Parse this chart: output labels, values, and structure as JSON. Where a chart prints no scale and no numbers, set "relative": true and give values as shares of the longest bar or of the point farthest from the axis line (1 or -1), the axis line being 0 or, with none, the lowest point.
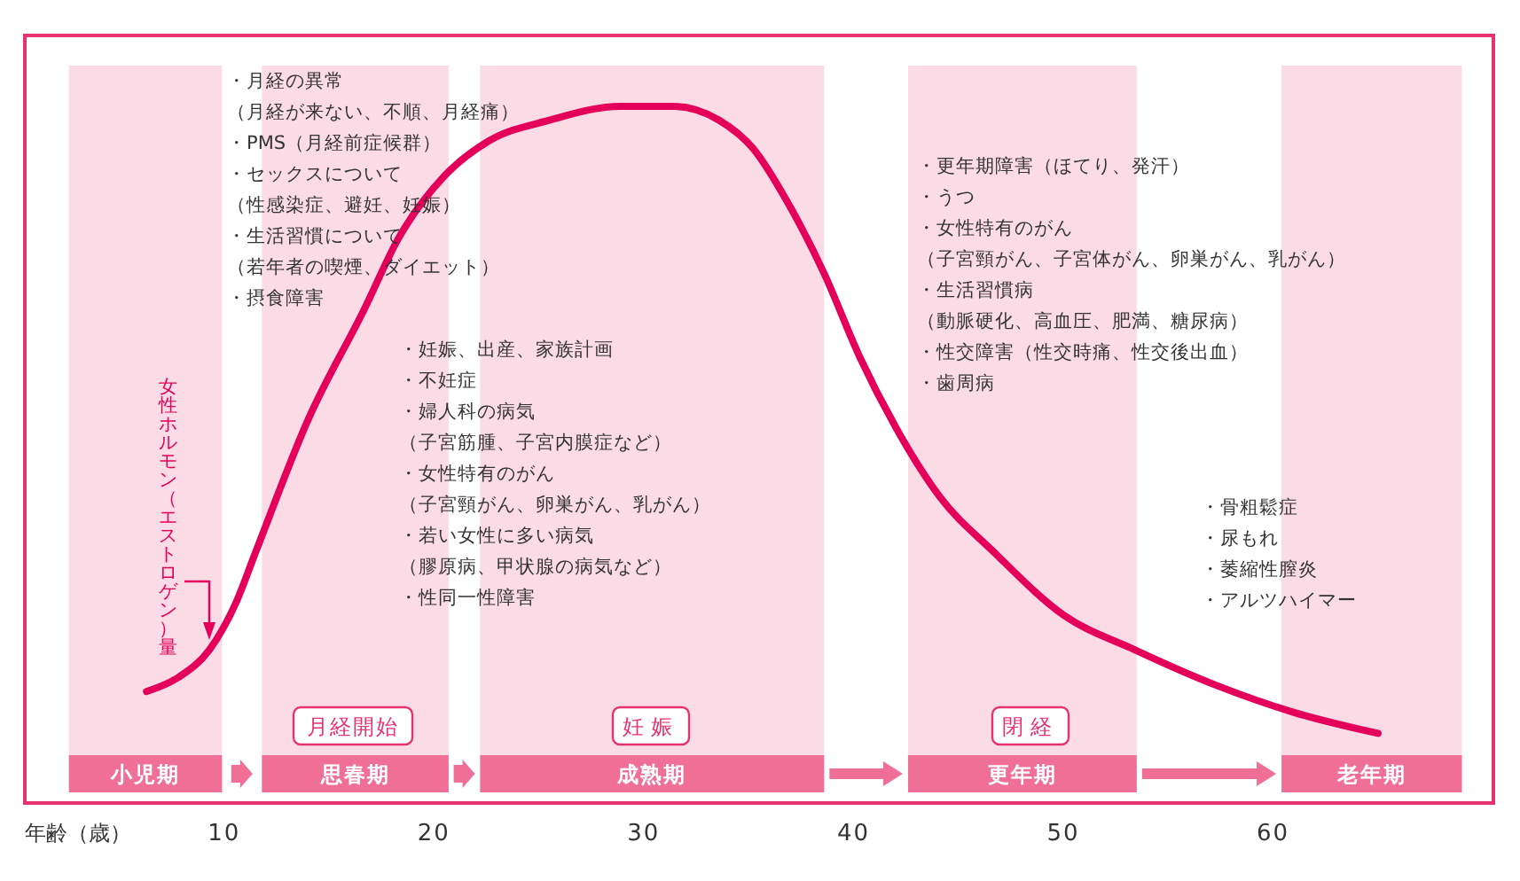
{
  "chart_data": {
    "type": "line",
    "relative": true,
    "xlabel": "年齢（歳）",
    "xlim": [
      0.5,
      70.5
    ],
    "xticks": [
      10,
      20,
      30,
      40,
      50,
      60
    ],
    "x": [
      6.3,
      7.8,
      9.3,
      10.6,
      11.5,
      14.0,
      16.7,
      18.3,
      20.5,
      22.6,
      25.5,
      28.9,
      31.4,
      33.6,
      35.2,
      36.9,
      38.6,
      40.3,
      42.0,
      44.1,
      46.7,
      50.0,
      53.4,
      57.2,
      61.0,
      65.0
    ],
    "series": [
      {
        "name": "女性ホルモン（エストロゲン）量",
        "color": "#e4005a",
        "values": [
          0.16,
          0.18,
          0.22,
          0.29,
          0.36,
          0.55,
          0.71,
          0.81,
          0.9,
          0.95,
          0.98,
          1,
          1,
          0.98,
          0.94,
          0.86,
          0.76,
          0.64,
          0.54,
          0.44,
          0.36,
          0.27,
          0.22,
          0.17,
          0.13,
          0.1
        ]
      }
    ],
    "bands": [
      {
        "axis": "x",
        "from": 2.6,
        "to": 9.9,
        "label": "小児期",
        "color": "#ef6f97"
      },
      {
        "axis": "x",
        "from": 11.8,
        "to": 20.7,
        "label": "思春期",
        "color": "#ef6f97"
      },
      {
        "axis": "x",
        "from": 22.2,
        "to": 38.6,
        "label": "成熟期",
        "color": "#ef6f97"
      },
      {
        "axis": "x",
        "from": 42.6,
        "to": 53.5,
        "label": "更年期",
        "color": "#ef6f97"
      },
      {
        "axis": "x",
        "from": 60.4,
        "to": 69,
        "label": "老年期",
        "color": "#ef6f97"
      }
    ],
    "annotations": [
      "・月経の異常",
      "（月経が来ない、不順、月経痛）",
      "・PMS（月経前症候群）",
      "・セックスについて",
      "（性感染症、避妊、妊娠）",
      "・生活習慣について",
      "（若年者の喫煙、ダイエット）",
      "・摂食障害",
      "・妊娠、出産、家族計画",
      "・不妊症",
      "・婦人科の病気",
      "（子宮筋腫、子宮内膜症など）",
      "・女性特有のがん",
      "（子宮頸がん、卵巣がん、乳がん）",
      "・若い女性に多い病気",
      "（膠原病、甲状腺の病気など）",
      "・性同一性障害",
      "・更年期障害（ほてり、発汗）",
      "・うつ",
      "・女性特有のがん",
      "（子宮頸がん、子宮体がん、卵巣がん、乳がん）",
      "・生活習慣病",
      "（動脈硬化、高血圧、肥満、糖尿病）",
      "・性交障害（性交時痛、性交後出血）",
      "・歯周病",
      "・骨粗鬆症",
      "・尿もれ",
      "・萎縮性膣炎",
      "・アルツハイマー",
      "月経開始",
      "妊娠",
      "閉経"
    ]
  }
}
